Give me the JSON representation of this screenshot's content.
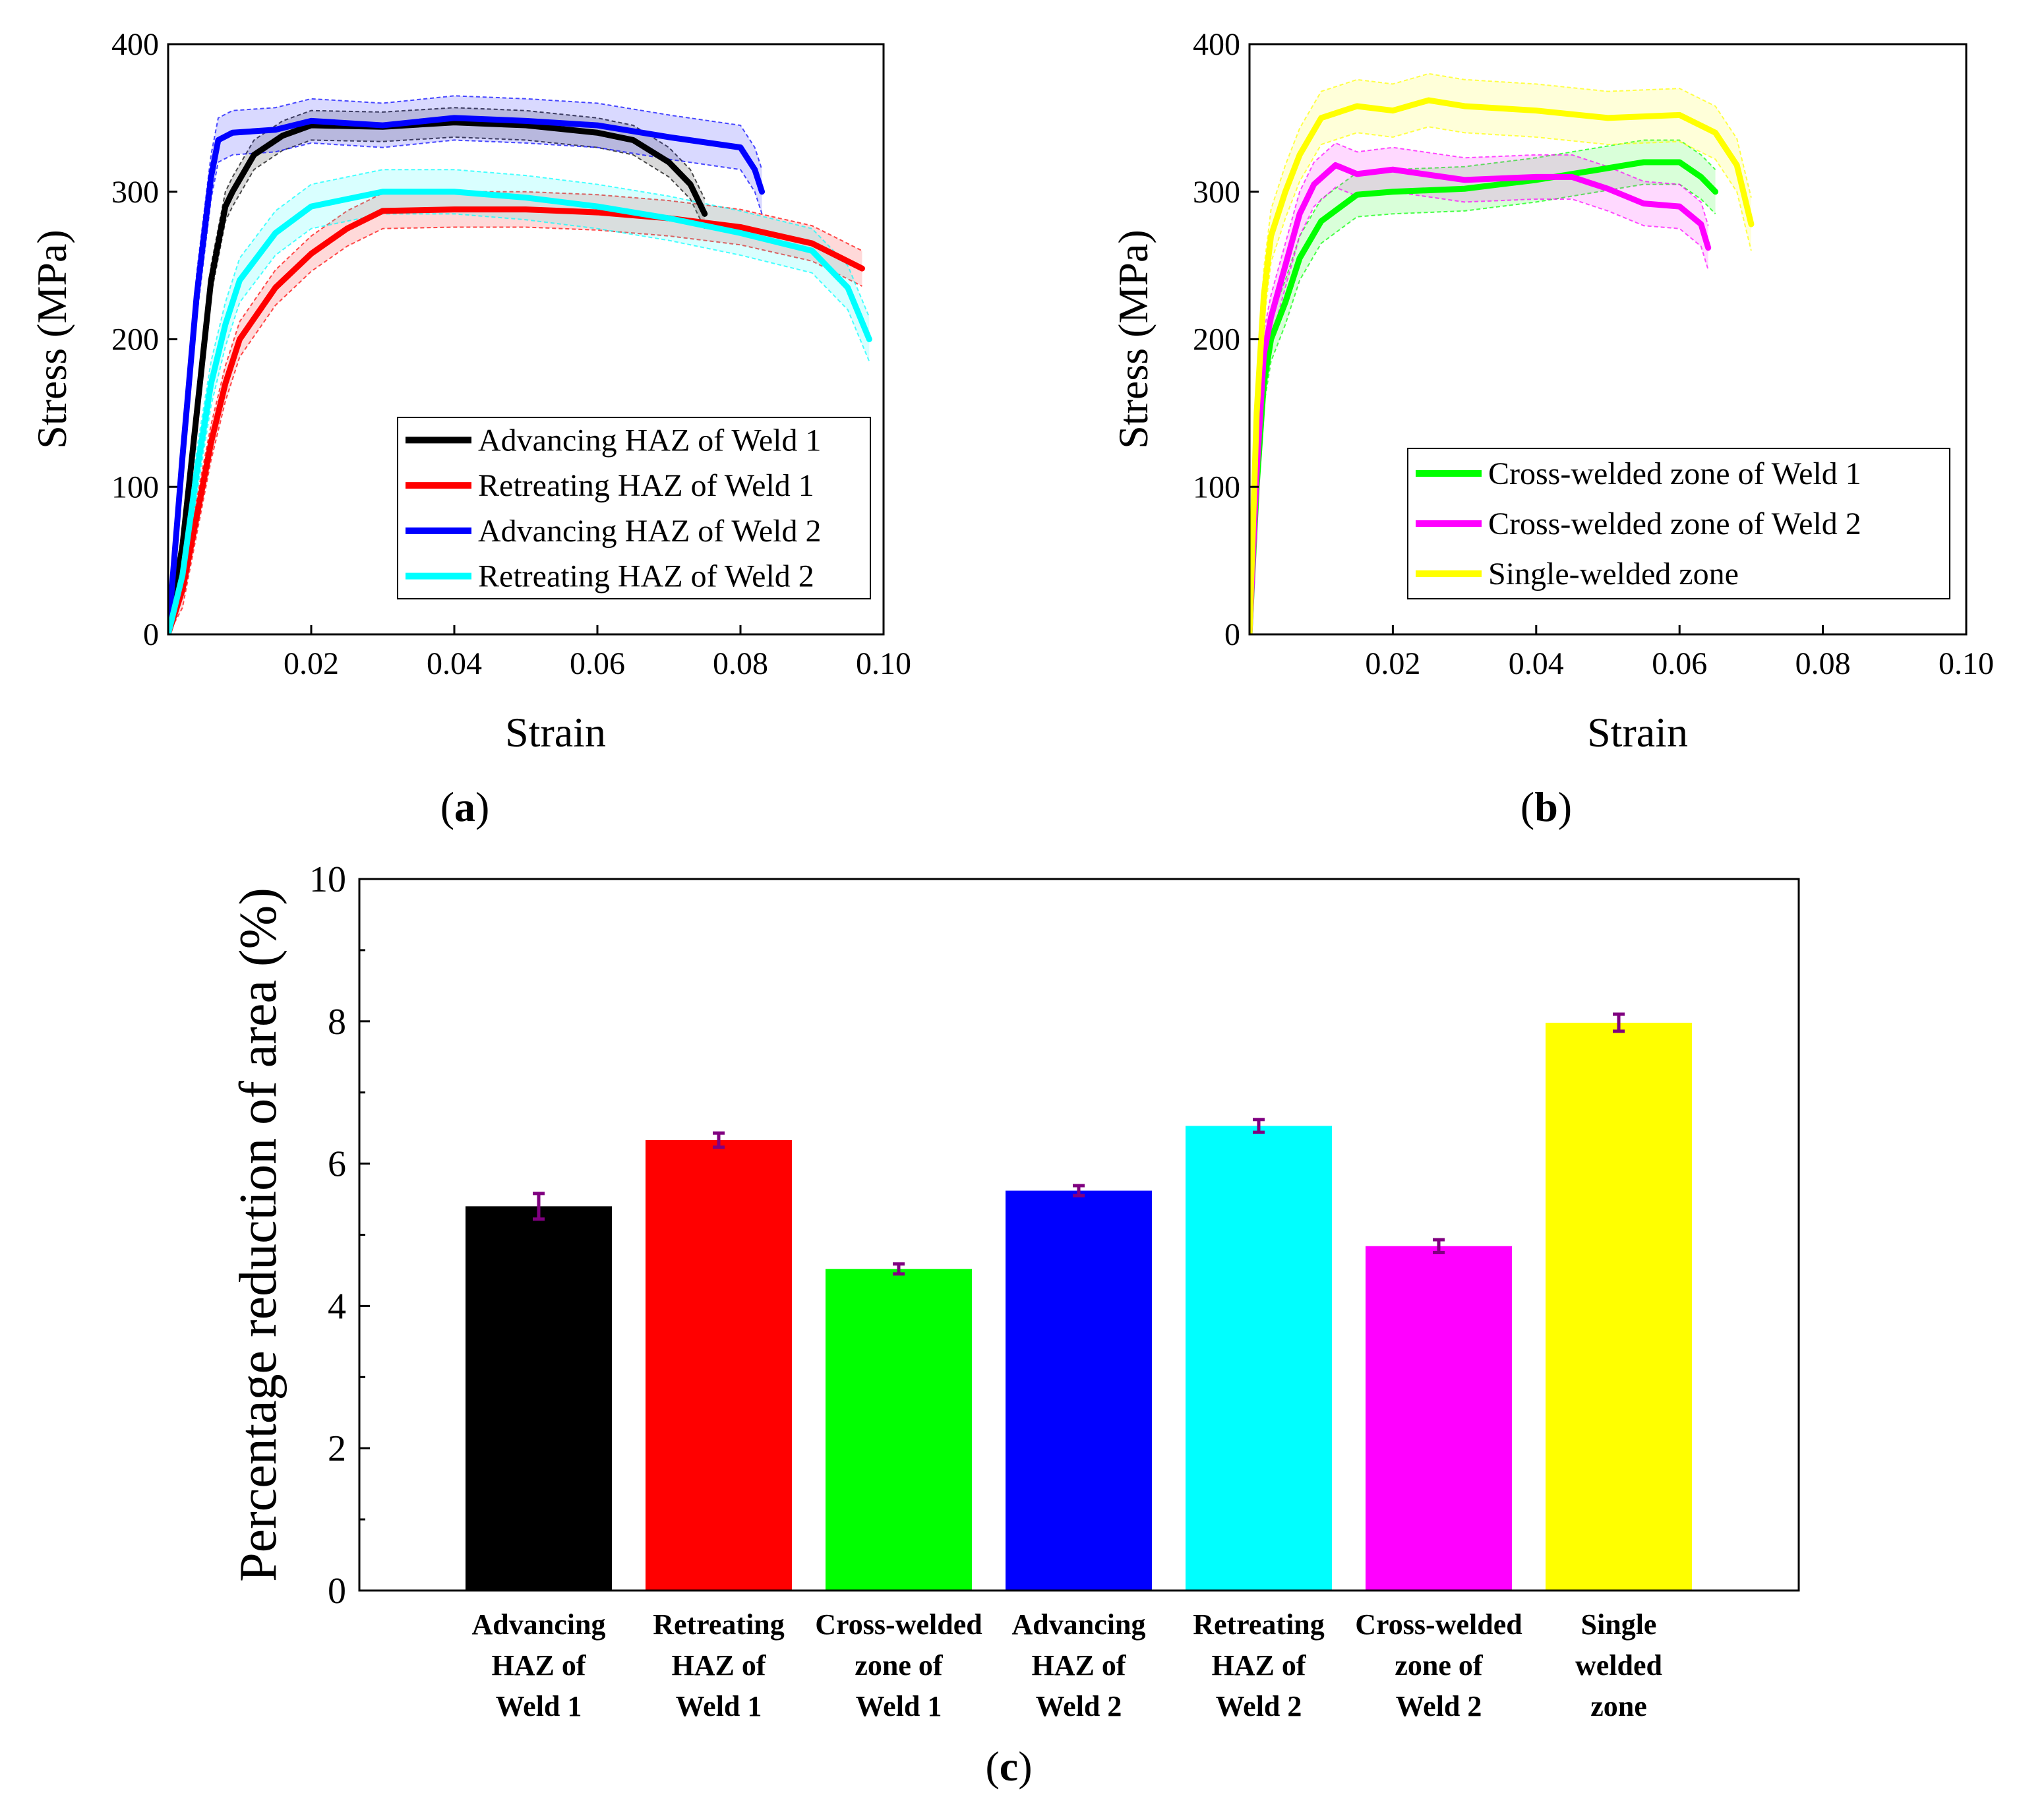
{
  "panels": {
    "a": {
      "label": "(a)",
      "label_letter": "a"
    },
    "b": {
      "label": "(b)",
      "label_letter": "b"
    },
    "c": {
      "label": "(c)",
      "label_letter": "c"
    }
  },
  "colors": {
    "black": "#000000",
    "red": "#ff0000",
    "green": "#00ff00",
    "blue": "#0000ff",
    "cyan": "#00ffff",
    "magenta": "#ff00ff",
    "yellow": "#ffff00",
    "errorbar": "#800080"
  },
  "chart_data": [
    {
      "id": "a",
      "type": "line",
      "xlabel": "Strain",
      "ylabel": "Stress (MPa)",
      "xlim": [
        0,
        0.1
      ],
      "ylim": [
        0,
        400
      ],
      "xticks": [
        0.02,
        0.04,
        0.06,
        0.08,
        0.1
      ],
      "xtick_labels": [
        "0.02",
        "0.04",
        "0.06",
        "0.08",
        "0.10"
      ],
      "yticks": [
        0,
        100,
        200,
        300,
        400
      ],
      "ytick_labels": [
        "0",
        "100",
        "200",
        "300",
        "400"
      ],
      "legend_position": "bottom-right",
      "series": [
        {
          "name": "Advancing HAZ of Weld 1",
          "color": "#000000",
          "band": 10,
          "x": [
            0,
            0.002,
            0.004,
            0.006,
            0.008,
            0.009,
            0.012,
            0.016,
            0.02,
            0.03,
            0.04,
            0.05,
            0.06,
            0.065,
            0.07,
            0.073,
            0.075
          ],
          "y": [
            0,
            60,
            150,
            240,
            290,
            300,
            325,
            338,
            345,
            344,
            347,
            345,
            340,
            335,
            320,
            305,
            285
          ]
        },
        {
          "name": "Retreating HAZ of Weld 1",
          "color": "#ff0000",
          "band": 12,
          "x": [
            0,
            0.002,
            0.004,
            0.006,
            0.008,
            0.01,
            0.015,
            0.02,
            0.025,
            0.03,
            0.04,
            0.05,
            0.06,
            0.07,
            0.08,
            0.09,
            0.097
          ],
          "y": [
            0,
            30,
            80,
            130,
            170,
            200,
            235,
            258,
            275,
            287,
            288,
            288,
            286,
            282,
            276,
            265,
            248
          ]
        },
        {
          "name": "Advancing HAZ of Weld 2",
          "color": "#0000ff",
          "band": 15,
          "x": [
            0,
            0.002,
            0.004,
            0.006,
            0.007,
            0.009,
            0.015,
            0.02,
            0.03,
            0.04,
            0.05,
            0.06,
            0.07,
            0.08,
            0.082,
            0.083
          ],
          "y": [
            0,
            120,
            230,
            310,
            335,
            340,
            342,
            348,
            345,
            350,
            348,
            345,
            337,
            330,
            315,
            300
          ]
        },
        {
          "name": "Retreating HAZ of Weld 2",
          "color": "#00ffff",
          "band": 15,
          "x": [
            0,
            0.002,
            0.004,
            0.006,
            0.008,
            0.01,
            0.015,
            0.02,
            0.03,
            0.04,
            0.05,
            0.06,
            0.07,
            0.08,
            0.09,
            0.095,
            0.098
          ],
          "y": [
            0,
            40,
            110,
            170,
            210,
            240,
            272,
            290,
            300,
            300,
            296,
            290,
            282,
            272,
            260,
            235,
            200
          ]
        }
      ],
      "legend": [
        "Advancing HAZ of Weld 1",
        "Retreating HAZ of Weld 1",
        "Advancing HAZ of Weld 2",
        "Retreating HAZ of Weld 2"
      ]
    },
    {
      "id": "b",
      "type": "line",
      "xlabel": "Strain",
      "ylabel": "Stress (MPa)",
      "xlim": [
        0,
        0.1
      ],
      "ylim": [
        0,
        400
      ],
      "xticks": [
        0.02,
        0.04,
        0.06,
        0.08,
        0.1
      ],
      "xtick_labels": [
        "0.02",
        "0.04",
        "0.06",
        "0.08",
        "0.10"
      ],
      "yticks": [
        0,
        100,
        200,
        300,
        400
      ],
      "ytick_labels": [
        "0",
        "100",
        "200",
        "300",
        "400"
      ],
      "legend_position": "bottom-right",
      "series": [
        {
          "name": "Cross-welded zone of Weld 1",
          "color": "#00ff00",
          "band": 15,
          "x": [
            0,
            0.001,
            0.002,
            0.003,
            0.005,
            0.007,
            0.01,
            0.015,
            0.02,
            0.03,
            0.04,
            0.05,
            0.055,
            0.06,
            0.063,
            0.065
          ],
          "y": [
            0,
            100,
            170,
            200,
            225,
            255,
            280,
            298,
            300,
            302,
            308,
            316,
            320,
            320,
            310,
            300
          ]
        },
        {
          "name": "Cross-welded zone of Weld 2",
          "color": "#ff00ff",
          "band": 15,
          "x": [
            0,
            0.001,
            0.002,
            0.003,
            0.005,
            0.007,
            0.009,
            0.012,
            0.015,
            0.02,
            0.03,
            0.04,
            0.045,
            0.05,
            0.055,
            0.06,
            0.063,
            0.064
          ],
          "y": [
            0,
            110,
            190,
            215,
            250,
            285,
            305,
            318,
            312,
            315,
            308,
            310,
            310,
            302,
            292,
            290,
            278,
            262
          ]
        },
        {
          "name": "Single-welded zone",
          "color": "#ffff00",
          "band": 18,
          "x": [
            0,
            0.001,
            0.002,
            0.003,
            0.005,
            0.007,
            0.01,
            0.015,
            0.02,
            0.025,
            0.03,
            0.04,
            0.05,
            0.06,
            0.065,
            0.068,
            0.07
          ],
          "y": [
            0,
            150,
            230,
            270,
            300,
            325,
            350,
            358,
            355,
            362,
            358,
            355,
            350,
            352,
            340,
            318,
            278
          ]
        }
      ],
      "legend": [
        "Cross-welded zone of Weld 1",
        "Cross-welded zone of Weld 2",
        "Single-welded zone"
      ]
    },
    {
      "id": "c",
      "type": "bar",
      "ylabel": "Percentage reduction of area (%)",
      "ylim": [
        0,
        10
      ],
      "yticks": [
        0,
        2,
        4,
        6,
        8,
        10
      ],
      "ytick_labels": [
        "0",
        "2",
        "4",
        "6",
        "8",
        "10"
      ],
      "categories": [
        [
          "Advancing",
          "HAZ of",
          "Weld 1"
        ],
        [
          "Retreating",
          "HAZ of",
          "Weld 1"
        ],
        [
          "Cross-welded",
          "zone of",
          "Weld 1"
        ],
        [
          "Advancing",
          "HAZ of",
          "Weld 2"
        ],
        [
          "Retreating",
          "HAZ of",
          "Weld 2"
        ],
        [
          "Cross-welded",
          "zone of",
          "Weld 2"
        ],
        [
          "Single",
          "welded",
          "zone"
        ]
      ],
      "values": [
        5.4,
        6.33,
        4.52,
        5.62,
        6.53,
        4.84,
        7.98
      ],
      "errors": [
        0.18,
        0.1,
        0.07,
        0.07,
        0.09,
        0.09,
        0.12
      ],
      "bar_colors": [
        "#000000",
        "#ff0000",
        "#00ff00",
        "#0000ff",
        "#00ffff",
        "#ff00ff",
        "#ffff00"
      ]
    }
  ]
}
